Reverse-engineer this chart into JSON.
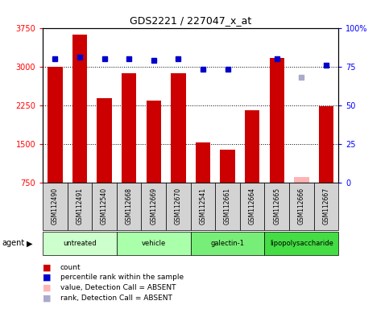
{
  "title": "GDS2221 / 227047_x_at",
  "samples": [
    "GSM112490",
    "GSM112491",
    "GSM112540",
    "GSM112668",
    "GSM112669",
    "GSM112670",
    "GSM112541",
    "GSM112661",
    "GSM112664",
    "GSM112665",
    "GSM112666",
    "GSM112667"
  ],
  "counts": [
    3000,
    3620,
    2380,
    2870,
    2340,
    2870,
    1520,
    1390,
    2150,
    3160,
    850,
    2220
  ],
  "ranks": [
    80,
    81,
    80,
    80,
    79,
    80,
    73,
    73,
    null,
    80,
    null,
    76
  ],
  "absent_value": [
    null,
    null,
    null,
    null,
    null,
    null,
    null,
    null,
    null,
    null,
    850,
    null
  ],
  "absent_rank": [
    null,
    null,
    null,
    null,
    null,
    null,
    null,
    null,
    null,
    null,
    68,
    null
  ],
  "absent_mask": [
    false,
    false,
    false,
    false,
    false,
    false,
    false,
    false,
    false,
    false,
    true,
    false
  ],
  "groups": [
    {
      "label": "untreated",
      "indices": [
        0,
        1,
        2
      ],
      "color": "#ccffcc"
    },
    {
      "label": "vehicle",
      "indices": [
        3,
        4,
        5
      ],
      "color": "#aaffaa"
    },
    {
      "label": "galectin-1",
      "indices": [
        6,
        7,
        8
      ],
      "color": "#77ee77"
    },
    {
      "label": "lipopolysaccharide",
      "indices": [
        9,
        10,
        11
      ],
      "color": "#44dd44"
    }
  ],
  "ylim_left": [
    750,
    3750
  ],
  "ylim_right": [
    0,
    100
  ],
  "yticks_left": [
    750,
    1500,
    2250,
    3000,
    3750
  ],
  "yticks_right": [
    0,
    25,
    50,
    75,
    100
  ],
  "ytick_labels_left": [
    "750",
    "1500",
    "2250",
    "3000",
    "3750"
  ],
  "ytick_labels_right": [
    "0",
    "25",
    "50",
    "75",
    "100%"
  ],
  "bar_color": "#cc0000",
  "bar_absent_color": "#ffb3b3",
  "rank_color": "#0000cc",
  "rank_absent_color": "#aaaacc",
  "dotted_grid_values": [
    25,
    50,
    75
  ]
}
